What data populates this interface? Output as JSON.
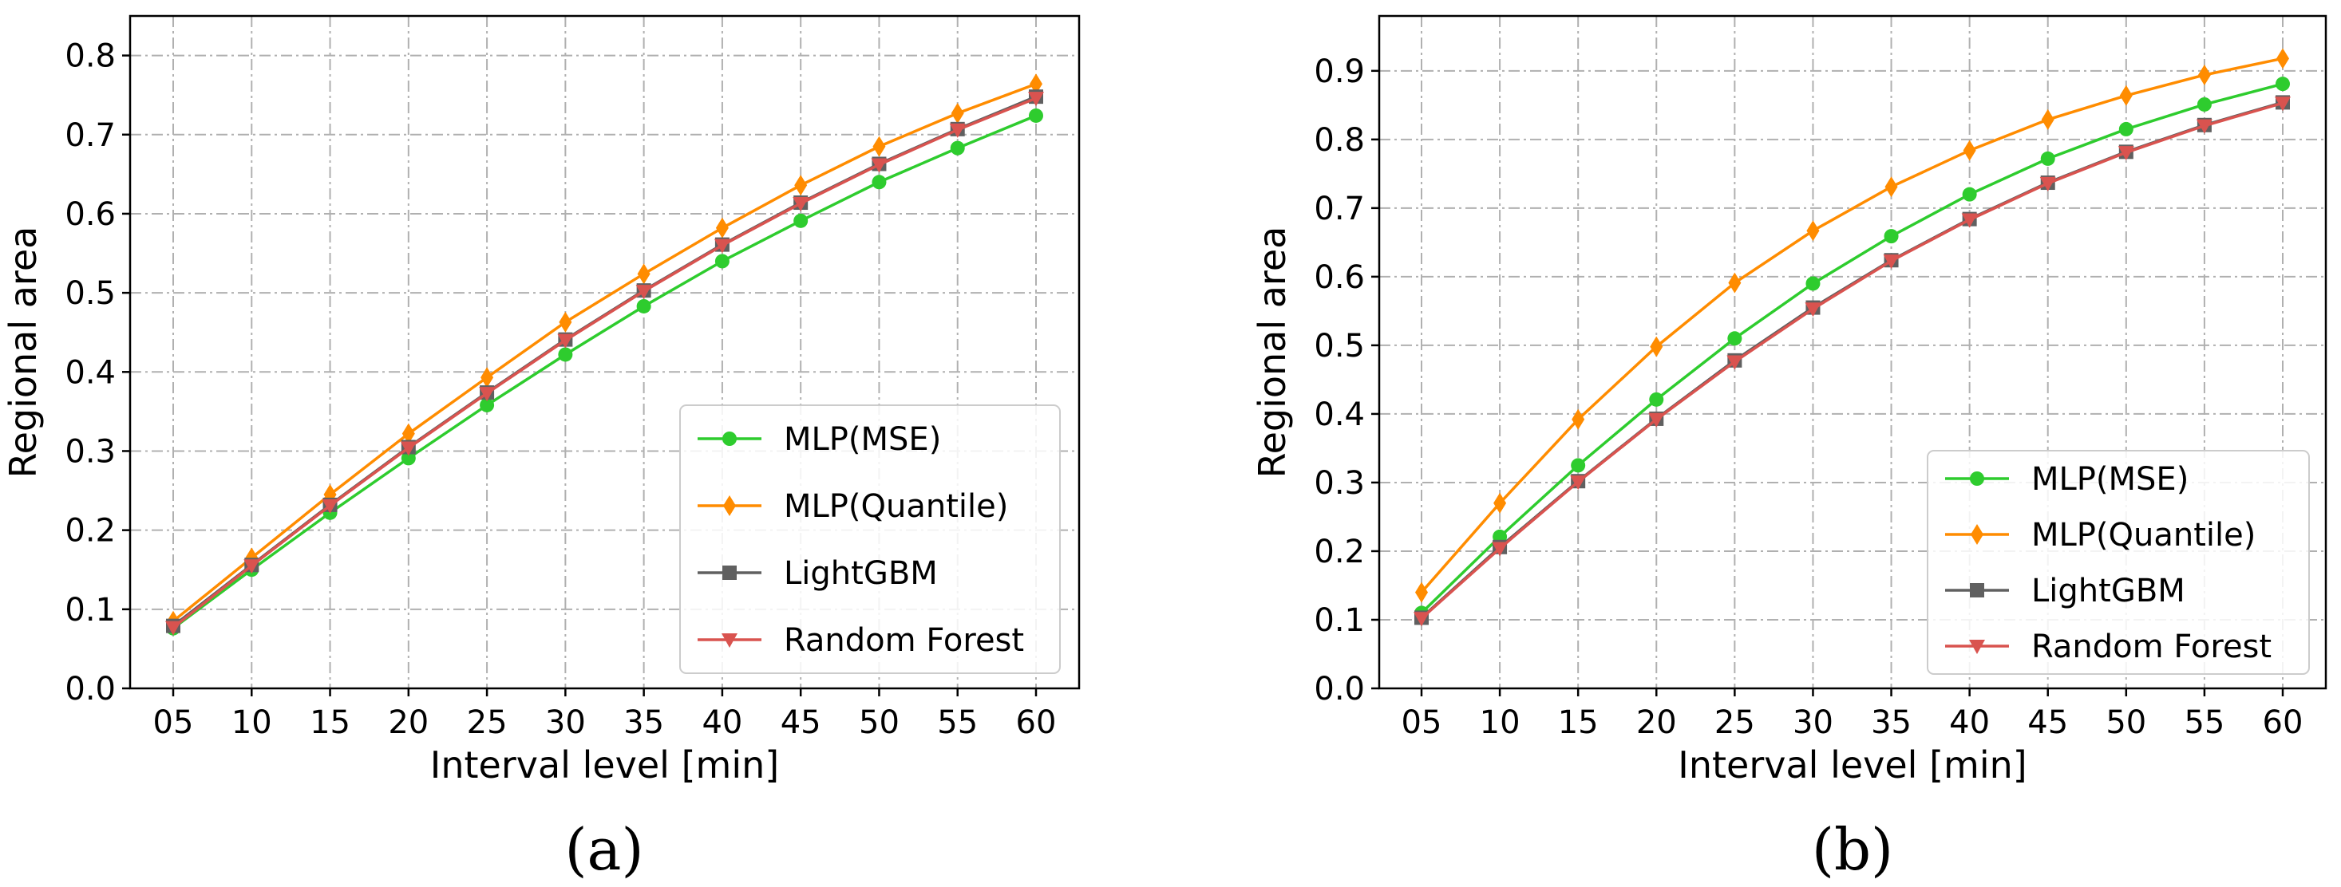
{
  "chart_data": [
    {
      "type": "line",
      "panel_label": "(a)",
      "categories": [
        "05",
        "10",
        "15",
        "20",
        "25",
        "30",
        "35",
        "40",
        "45",
        "50",
        "55",
        "60"
      ],
      "xlabel": "Interval level [min]",
      "ylabel": "Regional area",
      "ylim": [
        0,
        0.85
      ],
      "yticks": [
        "0.0",
        "0.1",
        "0.2",
        "0.3",
        "0.4",
        "0.5",
        "0.6",
        "0.7",
        "0.8"
      ],
      "grid": true,
      "legend_position": "bottom-right",
      "series": [
        {
          "name": "MLP(MSE)",
          "color": "#2ecc2e",
          "marker": "circle",
          "values": [
            0.076,
            0.15,
            0.222,
            0.291,
            0.358,
            0.422,
            0.483,
            0.54,
            0.591,
            0.64,
            0.683,
            0.724
          ]
        },
        {
          "name": "MLP(Quantile)",
          "color": "#ff8c00",
          "marker": "diamond",
          "values": [
            0.085,
            0.165,
            0.245,
            0.322,
            0.393,
            0.463,
            0.524,
            0.582,
            0.636,
            0.685,
            0.727,
            0.764
          ]
        },
        {
          "name": "LightGBM",
          "color": "#606060",
          "marker": "square",
          "values": [
            0.079,
            0.156,
            0.232,
            0.305,
            0.374,
            0.441,
            0.503,
            0.561,
            0.614,
            0.663,
            0.707,
            0.748
          ]
        },
        {
          "name": "Random Forest",
          "color": "#d9534f",
          "marker": "triangle-down",
          "values": [
            0.077,
            0.155,
            0.231,
            0.304,
            0.373,
            0.44,
            0.502,
            0.56,
            0.613,
            0.662,
            0.706,
            0.746
          ]
        }
      ]
    },
    {
      "type": "line",
      "panel_label": "(b)",
      "categories": [
        "05",
        "10",
        "15",
        "20",
        "25",
        "30",
        "35",
        "40",
        "45",
        "50",
        "55",
        "60"
      ],
      "xlabel": "Interval level [min]",
      "ylabel": "Regional area",
      "ylim": [
        0,
        0.98
      ],
      "yticks": [
        "0.0",
        "0.1",
        "0.2",
        "0.3",
        "0.4",
        "0.5",
        "0.6",
        "0.7",
        "0.8",
        "0.9"
      ],
      "grid": true,
      "legend_position": "bottom-right",
      "series": [
        {
          "name": "MLP(MSE)",
          "color": "#2ecc2e",
          "marker": "circle",
          "values": [
            0.11,
            0.221,
            0.325,
            0.421,
            0.51,
            0.59,
            0.659,
            0.72,
            0.772,
            0.815,
            0.851,
            0.881
          ]
        },
        {
          "name": "MLP(Quantile)",
          "color": "#ff8c00",
          "marker": "diamond",
          "values": [
            0.14,
            0.27,
            0.392,
            0.498,
            0.591,
            0.667,
            0.731,
            0.784,
            0.829,
            0.864,
            0.894,
            0.918
          ]
        },
        {
          "name": "LightGBM",
          "color": "#606060",
          "marker": "square",
          "values": [
            0.103,
            0.206,
            0.302,
            0.393,
            0.478,
            0.555,
            0.624,
            0.684,
            0.737,
            0.782,
            0.821,
            0.854
          ]
        },
        {
          "name": "Random Forest",
          "color": "#d9534f",
          "marker": "triangle-down",
          "values": [
            0.102,
            0.204,
            0.301,
            0.392,
            0.476,
            0.553,
            0.623,
            0.683,
            0.736,
            0.781,
            0.82,
            0.853
          ]
        }
      ]
    }
  ]
}
